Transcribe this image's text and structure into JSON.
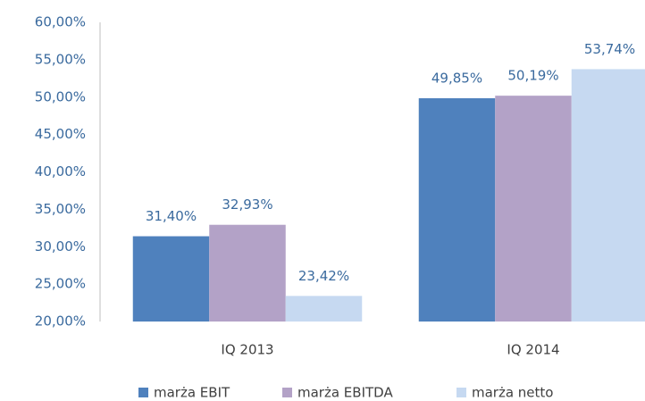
{
  "chart_data": {
    "type": "bar",
    "categories": [
      "IQ 2013",
      "IQ 2014"
    ],
    "series": [
      {
        "name": "marża EBIT",
        "color": "#4f81bd",
        "values": [
          31.4,
          49.85
        ],
        "value_labels": [
          "31,40%",
          "49,85%"
        ]
      },
      {
        "name": "marża EBITDA",
        "color": "#b3a2c7",
        "values": [
          32.93,
          50.19
        ],
        "value_labels": [
          "32,93%",
          "50,19%"
        ]
      },
      {
        "name": "marża netto",
        "color": "#c6d9f1",
        "values": [
          23.42,
          53.74
        ],
        "value_labels": [
          "23,42%",
          "53,74%"
        ]
      }
    ],
    "ylim": [
      20,
      60
    ],
    "yticks": [
      {
        "value": 20,
        "label": "20,00%"
      },
      {
        "value": 25,
        "label": "25,00%"
      },
      {
        "value": 30,
        "label": "30,00%"
      },
      {
        "value": 35,
        "label": "35,00%"
      },
      {
        "value": 40,
        "label": "40,00%"
      },
      {
        "value": 45,
        "label": "45,00%"
      },
      {
        "value": 50,
        "label": "50,00%"
      },
      {
        "value": 55,
        "label": "55,00%"
      },
      {
        "value": 60,
        "label": "60,00%"
      }
    ],
    "grid": false,
    "legend": "bottom"
  }
}
